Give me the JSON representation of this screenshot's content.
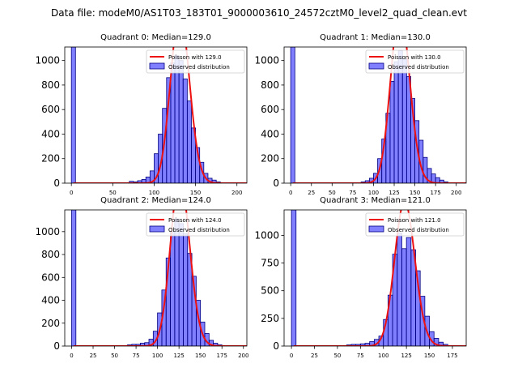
{
  "figure": {
    "title": "Data file: modeM0/AS1T03_183T01_9000003610_24572cztM0_level2_quad_clean.evt"
  },
  "chart_data": [
    {
      "type": "bar",
      "title": "Quadrant 0: Median=129.0",
      "bin_width": 5,
      "xlim": [
        -8,
        212
      ],
      "ylim": [
        0,
        1110
      ],
      "xticks": [
        0,
        50,
        100,
        150,
        200
      ],
      "xtick_labels": [
        "0",
        "50",
        "100",
        "150",
        "200"
      ],
      "yticks": [
        0,
        200,
        400,
        600,
        800,
        1000
      ],
      "ytick_labels": [
        "0",
        "200",
        "400",
        "600",
        "800",
        "1000"
      ],
      "zero_bin_value": 1110,
      "bins": [
        [
          70,
          15
        ],
        [
          75,
          10
        ],
        [
          80,
          20
        ],
        [
          85,
          30
        ],
        [
          90,
          50
        ],
        [
          95,
          100
        ],
        [
          100,
          240
        ],
        [
          105,
          400
        ],
        [
          110,
          610
        ],
        [
          115,
          860
        ],
        [
          120,
          980
        ],
        [
          125,
          1040
        ],
        [
          130,
          1000
        ],
        [
          135,
          850
        ],
        [
          140,
          670
        ],
        [
          145,
          450
        ],
        [
          150,
          290
        ],
        [
          155,
          170
        ],
        [
          160,
          80
        ],
        [
          165,
          40
        ],
        [
          170,
          25
        ],
        [
          175,
          10
        ]
      ],
      "poisson_mean": 129,
      "legend": {
        "line_label": "Poisson with 129.0",
        "bar_label": "Observed distribution",
        "position": "upper right"
      }
    },
    {
      "type": "bar",
      "title": "Quadrant 1: Median=130.0",
      "bin_width": 5,
      "xlim": [
        -8,
        212
      ],
      "ylim": [
        0,
        1110
      ],
      "xticks": [
        0,
        25,
        50,
        75,
        100,
        125,
        150,
        175,
        200
      ],
      "xtick_labels": [
        "0",
        "25",
        "50",
        "75",
        "100",
        "125",
        "150",
        "175",
        "200"
      ],
      "yticks": [
        0,
        200,
        400,
        600,
        800,
        1000
      ],
      "ytick_labels": [
        "0",
        "200",
        "400",
        "600",
        "800",
        "1000"
      ],
      "zero_bin_value": 1110,
      "bins": [
        [
          85,
          10
        ],
        [
          90,
          20
        ],
        [
          95,
          40
        ],
        [
          100,
          80
        ],
        [
          105,
          200
        ],
        [
          110,
          360
        ],
        [
          115,
          570
        ],
        [
          120,
          830
        ],
        [
          125,
          990
        ],
        [
          130,
          1080
        ],
        [
          135,
          1010
        ],
        [
          140,
          870
        ],
        [
          145,
          690
        ],
        [
          150,
          510
        ],
        [
          155,
          350
        ],
        [
          160,
          210
        ],
        [
          165,
          120
        ],
        [
          170,
          75
        ],
        [
          175,
          45
        ],
        [
          180,
          25
        ],
        [
          185,
          10
        ]
      ],
      "poisson_mean": 130,
      "legend": {
        "line_label": "Poisson with 130.0",
        "bar_label": "Observed distribution",
        "position": "upper right"
      }
    },
    {
      "type": "bar",
      "title": "Quadrant 2: Median=124.0",
      "bin_width": 5,
      "xlim": [
        -8,
        204
      ],
      "ylim": [
        0,
        1190
      ],
      "xticks": [
        0,
        25,
        50,
        75,
        100,
        125,
        150,
        175,
        200
      ],
      "xtick_labels": [
        "0",
        "25",
        "50",
        "75",
        "100",
        "125",
        "150",
        "175",
        "200"
      ],
      "yticks": [
        0,
        200,
        400,
        600,
        800,
        1000
      ],
      "ytick_labels": [
        "0",
        "200",
        "400",
        "600",
        "800",
        "1000"
      ],
      "zero_bin_value": 1190,
      "bins": [
        [
          65,
          10
        ],
        [
          70,
          15
        ],
        [
          75,
          15
        ],
        [
          80,
          25
        ],
        [
          85,
          30
        ],
        [
          90,
          60
        ],
        [
          95,
          130
        ],
        [
          100,
          290
        ],
        [
          105,
          490
        ],
        [
          110,
          770
        ],
        [
          115,
          1000
        ],
        [
          120,
          1110
        ],
        [
          125,
          1070
        ],
        [
          130,
          980
        ],
        [
          135,
          810
        ],
        [
          140,
          610
        ],
        [
          145,
          400
        ],
        [
          150,
          210
        ],
        [
          155,
          110
        ],
        [
          160,
          50
        ],
        [
          165,
          25
        ],
        [
          170,
          10
        ]
      ],
      "poisson_mean": 124,
      "legend": {
        "line_label": "Poisson with 124.0",
        "bar_label": "Observed distribution",
        "position": "upper right"
      }
    },
    {
      "type": "bar",
      "title": "Quadrant 3: Median=121.0",
      "bin_width": 5,
      "xlim": [
        -8,
        190
      ],
      "ylim": [
        0,
        1230
      ],
      "xticks": [
        0,
        25,
        50,
        75,
        100,
        125,
        150,
        175
      ],
      "xtick_labels": [
        "0",
        "25",
        "50",
        "75",
        "100",
        "125",
        "150",
        "175"
      ],
      "yticks": [
        0,
        250,
        500,
        750,
        1000
      ],
      "ytick_labels": [
        "0",
        "250",
        "500",
        "750",
        "1000"
      ],
      "zero_bin_value": 1230,
      "bins": [
        [
          60,
          10
        ],
        [
          65,
          15
        ],
        [
          70,
          15
        ],
        [
          75,
          20
        ],
        [
          80,
          25
        ],
        [
          85,
          40
        ],
        [
          90,
          60
        ],
        [
          95,
          90
        ],
        [
          100,
          240
        ],
        [
          105,
          460
        ],
        [
          110,
          830
        ],
        [
          115,
          1020
        ],
        [
          120,
          880
        ],
        [
          125,
          980
        ],
        [
          130,
          870
        ],
        [
          135,
          680
        ],
        [
          140,
          450
        ],
        [
          145,
          270
        ],
        [
          150,
          130
        ],
        [
          155,
          70
        ],
        [
          160,
          35
        ],
        [
          165,
          15
        ]
      ],
      "poisson_mean": 121,
      "legend": {
        "line_label": "Poisson with 121.0",
        "bar_label": "Observed distribution",
        "position": "upper right"
      }
    }
  ]
}
